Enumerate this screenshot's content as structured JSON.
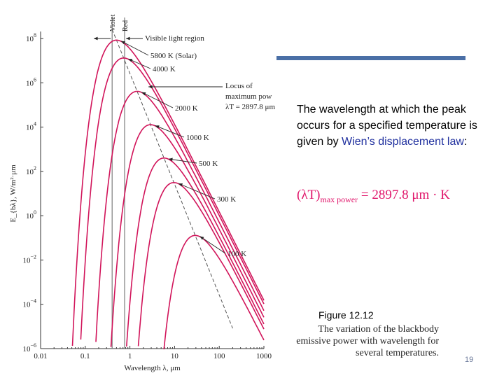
{
  "chart_data": {
    "type": "line",
    "title": "",
    "xlabel": "Wavelength λ, μm",
    "ylabel": "E_{bλ}, W/m²·μm",
    "x_scale": "log",
    "y_scale": "log",
    "xlim": [
      0.01,
      1000
    ],
    "ylim": [
      1e-06,
      100000000.0
    ],
    "x_ticks": [
      "0.01",
      "0.1",
      "1",
      "10",
      "100",
      "1000"
    ],
    "y_ticks": [
      {
        "base": "10",
        "exp": "8"
      },
      {
        "base": "10",
        "exp": "6"
      },
      {
        "base": "10",
        "exp": "4"
      },
      {
        "base": "10",
        "exp": "2"
      },
      {
        "base": "10",
        "exp": "0"
      },
      {
        "base": "10",
        "exp": "−2"
      },
      {
        "base": "10",
        "exp": "−4"
      },
      {
        "base": "10",
        "exp": "−6"
      }
    ],
    "series": [
      {
        "name": "5800 K (Solar)",
        "temperature_K": 5800,
        "peak_wavelength_um": 0.4996,
        "peak_value": 50000000.0
      },
      {
        "name": "4000 K",
        "temperature_K": 4000,
        "peak_wavelength_um": 0.7245,
        "peak_value": 16000000.0
      },
      {
        "name": "2000 K",
        "temperature_K": 2000,
        "peak_wavelength_um": 1.449,
        "peak_value": 520000.0
      },
      {
        "name": "1000 K",
        "temperature_K": 1000,
        "peak_wavelength_um": 2.898,
        "peak_value": 13000.0
      },
      {
        "name": "500 K",
        "temperature_K": 500,
        "peak_wavelength_um": 5.796,
        "peak_value": 400.0
      },
      {
        "name": "300 K",
        "temperature_K": 300,
        "peak_wavelength_um": 9.659,
        "peak_value": 31.0
      },
      {
        "name": "100 K",
        "temperature_K": 100,
        "peak_wavelength_um": 28.98,
        "peak_value": 0.13
      }
    ],
    "reference_lines": [
      {
        "label": "Violet",
        "x": 0.4
      },
      {
        "label": "Red",
        "x": 0.76
      }
    ],
    "annotations": {
      "visible_region": "Visible light region",
      "locus_line1": "Locus of",
      "locus_line2": "maximum pow",
      "locus_line3": "λT = 2897.8 μm"
    },
    "grid": false,
    "legend": "inline labels with arrows",
    "colors": {
      "curves": "#d1145a",
      "locus": "#555555",
      "axes": "#333333"
    }
  },
  "slide": {
    "body_text_1": "The wavelength at which the peak occurs for a specified temperature is given by ",
    "body_link": "Wien’s displacement law",
    "body_text_2": ":",
    "formula_lhs": "(λT)",
    "formula_sub": "max power",
    "formula_rhs": " = 2897.8 μm · K",
    "figure_label": "Figure 12.12",
    "caption": "The variation of the blackbody emissive power with wavelength for several temperatures.",
    "page_number": "19",
    "accent_color": "#4a6fa6",
    "formula_color": "#e0156a"
  }
}
